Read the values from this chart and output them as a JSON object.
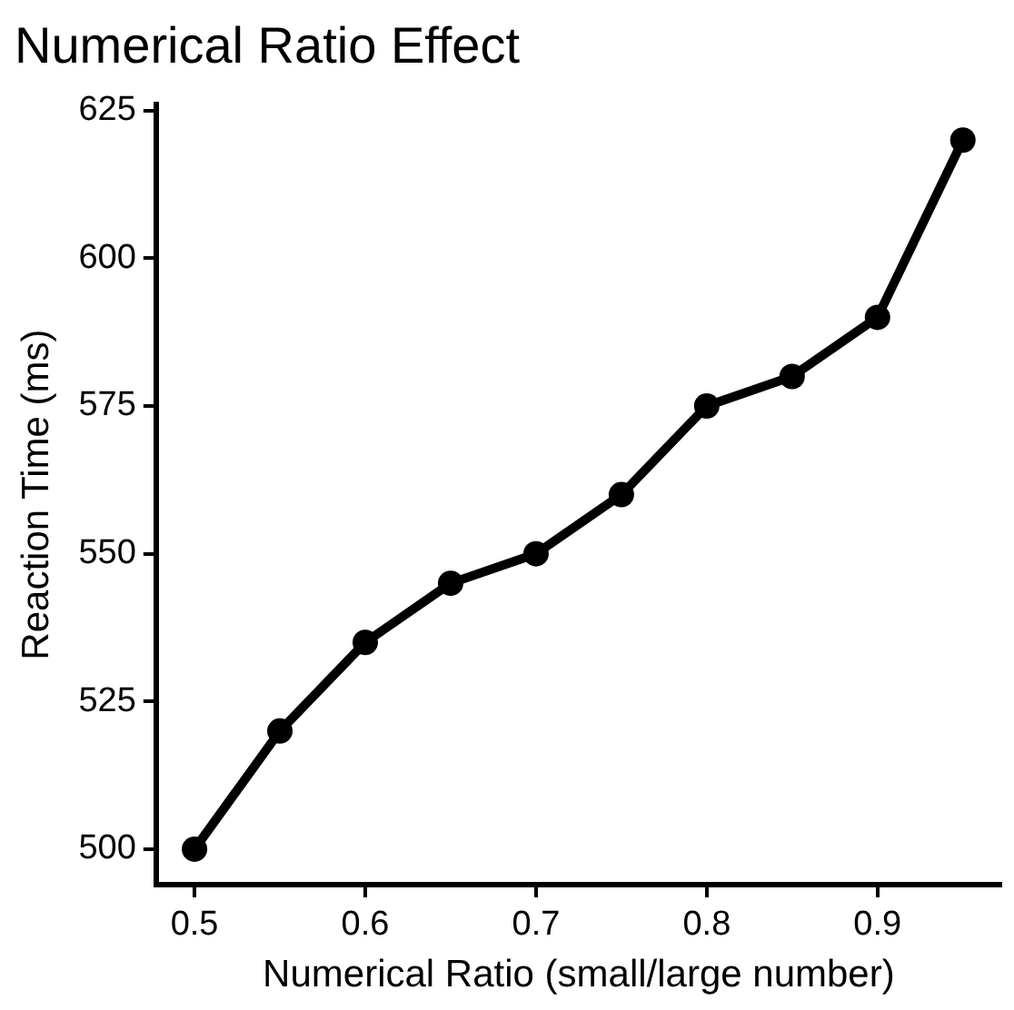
{
  "chart_data": {
    "type": "line",
    "title": "Numerical Ratio Effect",
    "xlabel": "Numerical Ratio (small/large number)",
    "ylabel": "Reaction Time (ms)",
    "x": [
      0.5,
      0.55,
      0.6,
      0.65,
      0.7,
      0.75,
      0.8,
      0.85,
      0.9,
      0.95
    ],
    "series": [
      {
        "color": "#000000",
        "values": [
          500,
          520,
          535,
          545,
          550,
          560,
          575,
          580,
          590,
          620
        ]
      }
    ],
    "xlim": [
      0.4775,
      0.9725
    ],
    "ylim": [
      494,
      626
    ],
    "xticks": [
      0.5,
      0.6,
      0.7,
      0.8,
      0.9
    ],
    "yticks": [
      500,
      525,
      550,
      575,
      600,
      625
    ],
    "grid": false,
    "legend": false,
    "marker": "circle",
    "line_style": "solid"
  }
}
